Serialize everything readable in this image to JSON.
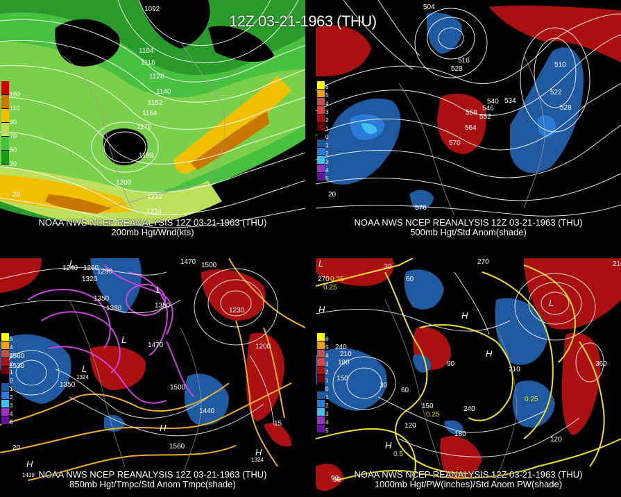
{
  "header": {
    "title": "12Z 03-21-1963 (THU)"
  },
  "panels": {
    "top_left": {
      "caption_line1": "NOAA NWS NCEP REANALYSIS 12Z 03-21-1963 (THU)",
      "caption_line2": "200mb Hgt/Wnd(kts)",
      "legend": {
        "values": [
          "180",
          "110",
          "90",
          "70",
          "50",
          "30"
        ],
        "colors": [
          "#cc0000",
          "#c87800",
          "#f0c000",
          "#bde05c",
          "#48c040",
          "#1a9a1a"
        ]
      },
      "corner": "20",
      "contour_labels": [
        "1092",
        "1104",
        "1116",
        "1128",
        "1140",
        "1152",
        "1164",
        "1176",
        "1188",
        "1200",
        "1212",
        "1224"
      ]
    },
    "top_right": {
      "caption_line1": "NOAA NWS NCEP REANALYSIS 12Z 03-21-1963 (THU)",
      "caption_line2": "500mb Hgt/Std Anom(shade)",
      "legend": {
        "values": [
          "6",
          "5",
          "4",
          "3",
          "2",
          "1",
          "0",
          "1",
          "2",
          "3",
          "4",
          "5"
        ],
        "colors": [
          "#ffff00",
          "#f0a000",
          "#c05050",
          "#e04040",
          "#aa1010",
          "#700000",
          "#000000",
          "#1f5aa0",
          "#2a7ad8",
          "#40c0f0",
          "#9a30c0",
          "#6a10a0"
        ]
      },
      "corner": "20",
      "contour_labels": [
        "504",
        "516",
        "528",
        "534",
        "540",
        "546",
        "552",
        "558",
        "564",
        "570",
        "576",
        "510",
        "522",
        "528"
      ]
    },
    "bottom_left": {
      "caption_line1": "NOAA NWS NCEP REANALYSIS 12Z 03-21-1963 (THU)",
      "caption_line2": "850mb Hgt/Tmpc/Std Anom Tmpc(shade)",
      "legend": {
        "values": [
          "5",
          "4",
          "3",
          "2",
          "1",
          "0",
          "1",
          "2",
          "3",
          "4",
          "5"
        ],
        "colors": [
          "#ffff00",
          "#f0a000",
          "#c05050",
          "#aa1010",
          "#700000",
          "#000000",
          "#1f5aa0",
          "#2a7ad8",
          "#40c0f0",
          "#9a30c0",
          "#6a10a0"
        ]
      },
      "corner": "20",
      "contour_labels": [
        "1470",
        "1500",
        "1290",
        "1320",
        "1350",
        "1380",
        "1350",
        "1260",
        "1240",
        "1470",
        "1500",
        "1560",
        "1530",
        "1350",
        "1440",
        "1560",
        "1200",
        "1230",
        "15",
        "1324",
        "1439",
        "1324"
      ],
      "pressure_marks": [
        "L",
        "L",
        "L",
        "L",
        "H",
        "H",
        "H"
      ]
    },
    "bottom_right": {
      "caption_line1": "NOAA NWS NCEP REANALYSIS 12Z 03-21-1963 (THU)",
      "caption_line2": "1000mb Hgt/PW(inches)/Std Anom PW(shade)",
      "legend": {
        "values": [
          "6",
          "5",
          "4",
          "3",
          "2",
          "1",
          "0",
          "1",
          "2",
          "3",
          "4",
          "5"
        ],
        "colors": [
          "#ffff00",
          "#f0a000",
          "#c05050",
          "#e04040",
          "#aa1010",
          "#700000",
          "#000000",
          "#1f5aa0",
          "#2a7ad8",
          "#40c0f0",
          "#9a30c0",
          "#6a10a0"
        ]
      },
      "corner": "90",
      "contour_labels": [
        "270",
        "240",
        "210",
        "30",
        "60",
        "0.25",
        "210",
        "180",
        "150",
        "90",
        "30",
        "60",
        "150",
        "0.25",
        "240",
        "120",
        "180",
        "0.5",
        "270",
        "210",
        "0.25",
        "120",
        "360",
        "90",
        "0.25"
      ],
      "pressure_marks": [
        "L",
        "H",
        "H",
        "H",
        "L",
        "H"
      ]
    }
  }
}
